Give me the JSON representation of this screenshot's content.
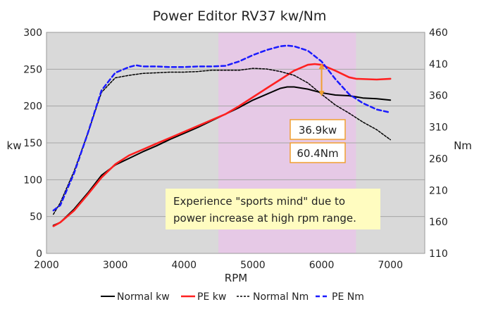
{
  "chart_data": {
    "type": "line",
    "title": "Power Editor RV37 kw/Nm",
    "xlabel": "RPM",
    "ylabel_left": "kw",
    "ylabel_right": "Nm",
    "xlim": [
      2000,
      7500
    ],
    "ylim_left": [
      0,
      300
    ],
    "ylim_right": [
      110,
      460
    ],
    "x_ticks": [
      "2000",
      "3000",
      "4000",
      "5000",
      "6000",
      "7000"
    ],
    "y_ticks_left": [
      "0",
      "50",
      "100",
      "150",
      "200",
      "250",
      "300"
    ],
    "y_ticks_right": [
      "110",
      "160",
      "210",
      "260",
      "310",
      "360",
      "410",
      "460"
    ],
    "grid": "horizontal",
    "highlight_band_rpm": [
      4500,
      6500
    ],
    "colors": {
      "plot_bg": "#d9d9d9",
      "band": "#e6c9e6",
      "normal": "#000000",
      "pe": "#ff2020",
      "pe_nm": "#1a1aff",
      "arrow": "#f0a030",
      "note_bg": "#fffcc0"
    },
    "series": [
      {
        "name": "Normal kw",
        "axis": "left",
        "style": "solid",
        "color": "#000000",
        "x": [
          2100,
          2200,
          2400,
          2600,
          2800,
          3000,
          3200,
          3400,
          3600,
          3800,
          4000,
          4200,
          4400,
          4600,
          4800,
          5000,
          5200,
          5400,
          5500,
          5600,
          5800,
          6000,
          6200,
          6400,
          6600,
          6800,
          7000
        ],
        "values": [
          38,
          42,
          60,
          82,
          106,
          120,
          129,
          138,
          146,
          155,
          163,
          171,
          180,
          189,
          198,
          208,
          216,
          224,
          226,
          226,
          223,
          218,
          215,
          214,
          211,
          210,
          208
        ]
      },
      {
        "name": "PE kw",
        "axis": "left",
        "style": "solid",
        "color": "#ff2020",
        "x": [
          2100,
          2200,
          2400,
          2600,
          2800,
          3000,
          3200,
          3400,
          3600,
          3800,
          4000,
          4200,
          4400,
          4600,
          4800,
          5000,
          5200,
          5400,
          5600,
          5800,
          5900,
          6000,
          6200,
          6400,
          6500,
          6800,
          7000
        ],
        "values": [
          37,
          42,
          58,
          80,
          103,
          121,
          133,
          141,
          149,
          157,
          165,
          173,
          181,
          189,
          200,
          212,
          224,
          236,
          248,
          256,
          257,
          256,
          248,
          239,
          237,
          236,
          237
        ]
      },
      {
        "name": "Normal Nm",
        "axis": "right",
        "style": "dotted",
        "color": "#000000",
        "x": [
          2100,
          2200,
          2400,
          2600,
          2800,
          3000,
          3200,
          3400,
          3600,
          3800,
          4000,
          4200,
          4400,
          4600,
          4800,
          5000,
          5200,
          5400,
          5600,
          5800,
          6000,
          6200,
          6400,
          6600,
          6800,
          7000
        ],
        "values": [
          172,
          190,
          240,
          300,
          365,
          388,
          392,
          395,
          396,
          397,
          397,
          398,
          400,
          400,
          400,
          403,
          402,
          398,
          392,
          380,
          362,
          345,
          332,
          318,
          306,
          290
        ]
      },
      {
        "name": "PE Nm",
        "axis": "right",
        "style": "dashed",
        "color": "#1a1aff",
        "x": [
          2100,
          2200,
          2400,
          2600,
          2800,
          3000,
          3200,
          3300,
          3400,
          3600,
          3800,
          4000,
          4200,
          4400,
          4600,
          4800,
          5000,
          5200,
          5400,
          5500,
          5600,
          5800,
          6000,
          6200,
          6400,
          6600,
          6800,
          7000
        ],
        "values": [
          178,
          186,
          237,
          300,
          368,
          396,
          405,
          408,
          406,
          406,
          405,
          405,
          406,
          406,
          407,
          414,
          424,
          432,
          438,
          439,
          438,
          431,
          414,
          386,
          362,
          348,
          338,
          333
        ]
      }
    ],
    "annotations": {
      "badge_kw": "36.9kw",
      "badge_nm": "60.4Nm",
      "note_line1": "Experience \"sports mind\" due to",
      "note_line2": "power increase at high rpm range.",
      "arrow_rpm": 6000,
      "arrow_from_kw": 258,
      "arrow_to_kw": 213
    },
    "legend": [
      "Normal kw",
      "PE kw",
      "Normal Nm",
      "PE Nm"
    ]
  }
}
